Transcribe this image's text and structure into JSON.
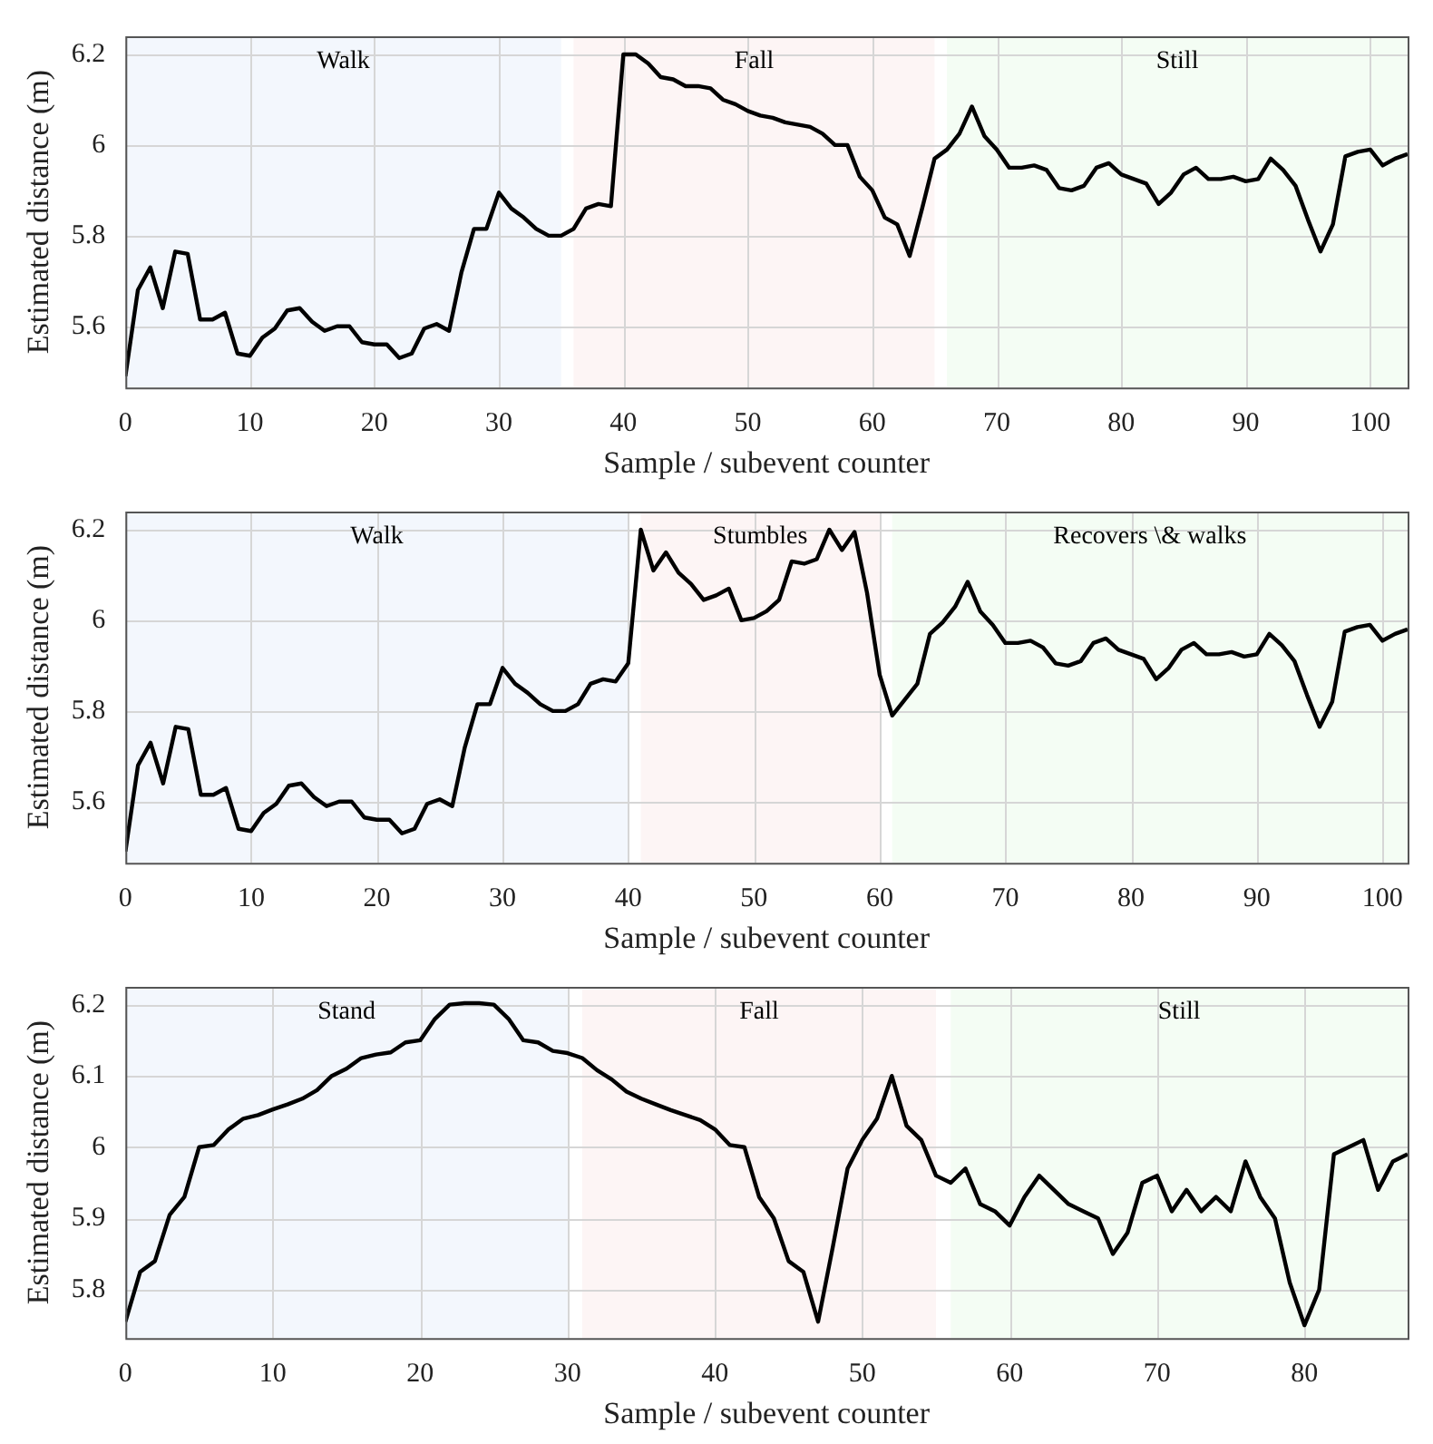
{
  "chart_data": [
    {
      "type": "line",
      "xlabel": "Sample / subevent counter",
      "ylabel": "Estimated distance (m)",
      "grid": true,
      "marker": "none",
      "line_style": "solid",
      "color": "#000000",
      "xlim": [
        0,
        103
      ],
      "ylim": [
        5.465,
        6.24
      ],
      "xticks": [
        0,
        10,
        20,
        30,
        40,
        50,
        60,
        70,
        80,
        90,
        100
      ],
      "yticks": [
        5.6,
        5.8,
        6,
        6.2
      ],
      "bands": [
        {
          "axis": "x",
          "from": 0,
          "to": 35,
          "label": "Walk",
          "color": "#f3f7fd"
        },
        {
          "axis": "x",
          "from": 36,
          "to": 65,
          "label": "Fall",
          "color": "#fdf5f5"
        },
        {
          "axis": "x",
          "from": 66,
          "to": 103,
          "label": "Still",
          "color": "#f4fdf4"
        }
      ],
      "x": [
        0,
        1,
        2,
        3,
        4,
        5,
        6,
        7,
        8,
        9,
        10,
        11,
        12,
        13,
        14,
        15,
        16,
        17,
        18,
        19,
        20,
        21,
        22,
        23,
        24,
        25,
        26,
        27,
        28,
        29,
        30,
        31,
        32,
        33,
        34,
        35,
        36,
        37,
        38,
        39,
        40,
        41,
        42,
        43,
        44,
        45,
        46,
        47,
        48,
        49,
        50,
        51,
        52,
        53,
        54,
        55,
        56,
        57,
        58,
        59,
        60,
        61,
        62,
        63,
        64,
        65,
        66,
        67,
        68,
        69,
        70,
        71,
        72,
        73,
        74,
        75,
        76,
        77,
        78,
        79,
        80,
        81,
        82,
        83,
        84,
        85,
        86,
        87,
        88,
        89,
        90,
        91,
        92,
        93,
        94,
        95,
        96,
        97,
        98,
        99,
        100,
        101,
        102,
        103
      ],
      "values": [
        5.49,
        5.68,
        5.73,
        5.64,
        5.765,
        5.76,
        5.615,
        5.615,
        5.63,
        5.54,
        5.535,
        5.575,
        5.595,
        5.635,
        5.64,
        5.61,
        5.59,
        5.6,
        5.6,
        5.565,
        5.56,
        5.56,
        5.53,
        5.54,
        5.595,
        5.605,
        5.59,
        5.72,
        5.815,
        5.815,
        5.895,
        5.86,
        5.84,
        5.815,
        5.8,
        5.8,
        5.815,
        5.86,
        5.87,
        5.865,
        6.2,
        6.2,
        6.18,
        6.15,
        6.145,
        6.13,
        6.13,
        6.125,
        6.1,
        6.09,
        6.075,
        6.065,
        6.06,
        6.05,
        6.045,
        6.04,
        6.025,
        6.0,
        6.0,
        5.93,
        5.9,
        5.84,
        5.825,
        5.755,
        5.86,
        5.97,
        5.99,
        6.025,
        6.085,
        6.02,
        5.99,
        5.95,
        5.95,
        5.955,
        5.945,
        5.905,
        5.9,
        5.91,
        5.95,
        5.96,
        5.935,
        5.925,
        5.915,
        5.87,
        5.895,
        5.935,
        5.95,
        5.925,
        5.925,
        5.93,
        5.92,
        5.925,
        5.97,
        5.945,
        5.91,
        5.835,
        5.765,
        5.825,
        5.975,
        5.985,
        5.99,
        5.955,
        5.97,
        5.98
      ]
    },
    {
      "type": "line",
      "xlabel": "Sample / subevent counter",
      "ylabel": "Estimated distance (m)",
      "grid": true,
      "marker": "none",
      "line_style": "solid",
      "color": "#000000",
      "xlim": [
        0,
        102
      ],
      "ylim": [
        5.465,
        6.24
      ],
      "xticks": [
        0,
        10,
        20,
        30,
        40,
        50,
        60,
        70,
        80,
        90,
        100
      ],
      "yticks": [
        5.6,
        5.8,
        6,
        6.2
      ],
      "bands": [
        {
          "axis": "x",
          "from": 0,
          "to": 40,
          "label": "Walk",
          "color": "#f3f7fd"
        },
        {
          "axis": "x",
          "from": 41,
          "to": 60,
          "label": "Stumbles",
          "color": "#fdf5f5"
        },
        {
          "axis": "x",
          "from": 61,
          "to": 102,
          "label": "Recovers \\& walks",
          "color": "#f4fdf4"
        }
      ],
      "x": [
        0,
        1,
        2,
        3,
        4,
        5,
        6,
        7,
        8,
        9,
        10,
        11,
        12,
        13,
        14,
        15,
        16,
        17,
        18,
        19,
        20,
        21,
        22,
        23,
        24,
        25,
        26,
        27,
        28,
        29,
        30,
        31,
        32,
        33,
        34,
        35,
        36,
        37,
        38,
        39,
        40,
        41,
        42,
        43,
        44,
        45,
        46,
        47,
        48,
        49,
        50,
        51,
        52,
        53,
        54,
        55,
        56,
        57,
        58,
        59,
        60,
        61,
        62,
        63,
        64,
        65,
        66,
        67,
        68,
        69,
        70,
        71,
        72,
        73,
        74,
        75,
        76,
        77,
        78,
        79,
        80,
        81,
        82,
        83,
        84,
        85,
        86,
        87,
        88,
        89,
        90,
        91,
        92,
        93,
        94,
        95,
        96,
        97,
        98,
        99,
        100,
        101,
        102
      ],
      "values": [
        5.49,
        5.68,
        5.73,
        5.64,
        5.765,
        5.76,
        5.615,
        5.615,
        5.63,
        5.54,
        5.535,
        5.575,
        5.595,
        5.635,
        5.64,
        5.61,
        5.59,
        5.6,
        5.6,
        5.565,
        5.56,
        5.56,
        5.53,
        5.54,
        5.595,
        5.605,
        5.59,
        5.72,
        5.815,
        5.815,
        5.895,
        5.86,
        5.84,
        5.815,
        5.8,
        5.8,
        5.815,
        5.86,
        5.87,
        5.865,
        5.905,
        6.2,
        6.11,
        6.15,
        6.105,
        6.08,
        6.045,
        6.055,
        6.07,
        6.0,
        6.005,
        6.02,
        6.045,
        6.13,
        6.125,
        6.135,
        6.2,
        6.155,
        6.195,
        6.06,
        5.88,
        5.79,
        5.825,
        5.86,
        5.97,
        5.995,
        6.03,
        6.085,
        6.02,
        5.99,
        5.95,
        5.95,
        5.955,
        5.94,
        5.905,
        5.9,
        5.91,
        5.95,
        5.96,
        5.935,
        5.925,
        5.915,
        5.87,
        5.895,
        5.935,
        5.95,
        5.925,
        5.925,
        5.93,
        5.92,
        5.925,
        5.97,
        5.945,
        5.91,
        5.835,
        5.765,
        5.82,
        5.975,
        5.985,
        5.99,
        5.955,
        5.97,
        5.98
      ]
    },
    {
      "type": "line",
      "xlabel": "Sample / subevent counter",
      "ylabel": "Estimated distance (m)",
      "grid": true,
      "marker": "none",
      "line_style": "solid",
      "color": "#000000",
      "xlim": [
        0,
        87
      ],
      "ylim": [
        5.732,
        6.225
      ],
      "xticks": [
        0,
        10,
        20,
        30,
        40,
        50,
        60,
        70,
        80
      ],
      "yticks": [
        5.8,
        5.9,
        6,
        6.1,
        6.2
      ],
      "bands": [
        {
          "axis": "x",
          "from": 0,
          "to": 30,
          "label": "Stand",
          "color": "#f3f7fd"
        },
        {
          "axis": "x",
          "from": 31,
          "to": 55,
          "label": "Fall",
          "color": "#fdf5f5"
        },
        {
          "axis": "x",
          "from": 56,
          "to": 87,
          "label": "Still",
          "color": "#f4fdf4"
        }
      ],
      "x": [
        0,
        1,
        2,
        3,
        4,
        5,
        6,
        7,
        8,
        9,
        10,
        11,
        12,
        13,
        14,
        15,
        16,
        17,
        18,
        19,
        20,
        21,
        22,
        23,
        24,
        25,
        26,
        27,
        28,
        29,
        30,
        31,
        32,
        33,
        34,
        35,
        36,
        37,
        38,
        39,
        40,
        41,
        42,
        43,
        44,
        45,
        46,
        47,
        48,
        49,
        50,
        51,
        52,
        53,
        54,
        55,
        56,
        57,
        58,
        59,
        60,
        61,
        62,
        63,
        64,
        65,
        66,
        67,
        68,
        69,
        70,
        71,
        72,
        73,
        74,
        75,
        76,
        77,
        78,
        79,
        80,
        81,
        82,
        83,
        84,
        85,
        86,
        87
      ],
      "values": [
        5.755,
        5.825,
        5.84,
        5.905,
        5.93,
        6.0,
        6.003,
        6.025,
        6.04,
        6.045,
        6.053,
        6.06,
        6.068,
        6.08,
        6.1,
        6.11,
        6.125,
        6.13,
        6.133,
        6.147,
        6.15,
        6.18,
        6.2,
        6.202,
        6.202,
        6.2,
        6.18,
        6.15,
        6.147,
        6.135,
        6.132,
        6.125,
        6.108,
        6.095,
        6.078,
        6.068,
        6.06,
        6.052,
        6.045,
        6.038,
        6.025,
        6.003,
        6.0,
        5.93,
        5.9,
        5.84,
        5.825,
        5.755,
        5.86,
        5.97,
        6.01,
        6.04,
        6.1,
        6.03,
        6.01,
        5.96,
        5.95,
        5.97,
        5.92,
        5.91,
        5.89,
        5.93,
        5.96,
        5.94,
        5.92,
        5.91,
        5.9,
        5.85,
        5.88,
        5.95,
        5.96,
        5.91,
        5.94,
        5.91,
        5.93,
        5.91,
        5.98,
        5.93,
        5.9,
        5.81,
        5.75,
        5.8,
        5.99,
        6.0,
        6.01,
        5.94,
        5.98,
        5.99
      ]
    }
  ]
}
